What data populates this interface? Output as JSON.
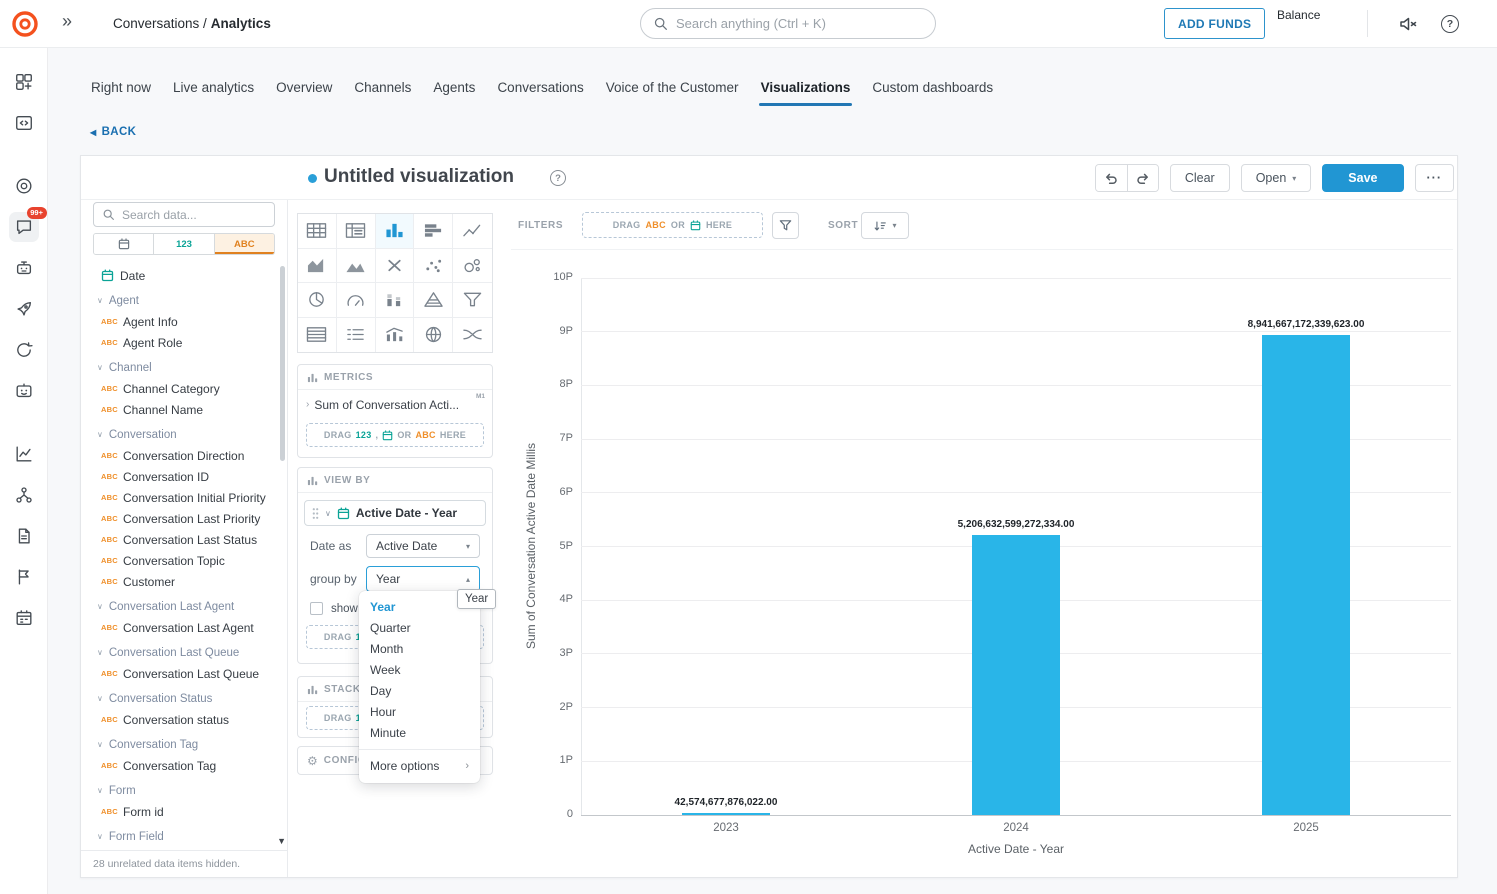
{
  "colors": {
    "accent_blue": "#2196d3",
    "bar_blue": "#29b5e8",
    "orange": "#ef8f2a",
    "teal": "#0aa396",
    "link_blue": "#1a6fb0",
    "badge_red": "#e8432e",
    "brand_orange": "#f4511e"
  },
  "topbar": {
    "breadcrumb_section": "Conversations /",
    "breadcrumb_current": "Analytics",
    "search_placeholder": "Search anything (Ctrl + K)",
    "add_funds_label": "ADD FUNDS",
    "balance_label": "Balance"
  },
  "rail": {
    "groups": [
      [
        "apps-icon",
        "code-box-icon"
      ],
      [
        "target-icon",
        "chat-icon",
        "bot-icon",
        "rocket-icon",
        "sync-icon",
        "assistant-icon"
      ],
      [
        "line-chart-icon",
        "hierarchy-icon",
        "document-icon",
        "flag-icon",
        "calendar-grid-icon"
      ]
    ],
    "active_icon": "chat-icon",
    "chat_badge": "99+"
  },
  "tabs": {
    "items": [
      "Right now",
      "Live analytics",
      "Overview",
      "Channels",
      "Agents",
      "Conversations",
      "Voice of the Customer",
      "Visualizations",
      "Custom dashboards"
    ],
    "active": "Visualizations"
  },
  "back_label": "BACK",
  "header": {
    "title": "Untitled visualization",
    "clear_label": "Clear",
    "open_label": "Open",
    "save_label": "Save",
    "more_label": "···"
  },
  "fields_panel": {
    "search_placeholder": "Search data...",
    "abc_prefix": "ABC",
    "type_toggle": {
      "number_label": "123",
      "text_label": "ABC"
    },
    "items": [
      {
        "kind": "date",
        "label": "Date"
      },
      {
        "kind": "group",
        "label": "Agent"
      },
      {
        "kind": "text",
        "label": "Agent Info"
      },
      {
        "kind": "text",
        "label": "Agent Role"
      },
      {
        "kind": "group",
        "label": "Channel"
      },
      {
        "kind": "text",
        "label": "Channel Category"
      },
      {
        "kind": "text",
        "label": "Channel Name"
      },
      {
        "kind": "group",
        "label": "Conversation"
      },
      {
        "kind": "text",
        "label": "Conversation Direction"
      },
      {
        "kind": "text",
        "label": "Conversation ID"
      },
      {
        "kind": "text",
        "label": "Conversation Initial Priority"
      },
      {
        "kind": "text",
        "label": "Conversation Last Priority"
      },
      {
        "kind": "text",
        "label": "Conversation Last Status"
      },
      {
        "kind": "text",
        "label": "Conversation Topic"
      },
      {
        "kind": "text",
        "label": "Customer"
      },
      {
        "kind": "group",
        "label": "Conversation Last Agent"
      },
      {
        "kind": "text",
        "label": "Conversation Last Agent"
      },
      {
        "kind": "group",
        "label": "Conversation Last Queue"
      },
      {
        "kind": "text",
        "label": "Conversation Last Queue"
      },
      {
        "kind": "group",
        "label": "Conversation Status"
      },
      {
        "kind": "text",
        "label": "Conversation status"
      },
      {
        "kind": "group",
        "label": "Conversation Tag"
      },
      {
        "kind": "text",
        "label": "Conversation Tag"
      },
      {
        "kind": "group",
        "label": "Form"
      },
      {
        "kind": "text",
        "label": "Form id"
      },
      {
        "kind": "group",
        "label": "Form Field"
      }
    ],
    "footer_note": "28 unrelated data items hidden."
  },
  "chart_types": {
    "icons": [
      "table-icon",
      "pivot-table-icon",
      "bar-chart-icon",
      "bar-horizontal-icon",
      "line-chart-icon",
      "area-chart-icon",
      "mountain-chart-icon",
      "axis-chart-icon",
      "scatter-icon",
      "bubble-icon",
      "pie-icon",
      "gauge-icon",
      "stacked-bar-icon",
      "pyramid-icon",
      "funnel-chart-icon",
      "data-table-icon",
      "summary-icon",
      "combo-chart-icon",
      "geo-map-icon",
      "sankey-icon"
    ],
    "selected": "bar-chart-icon"
  },
  "metrics_section": {
    "header": "METRICS",
    "metric_name": "Sum of Conversation Acti...",
    "metric_badge": "M1",
    "dropzone": {
      "drag": "DRAG",
      "num": "123",
      "comma": ",",
      "or": "OR",
      "abc": "ABC",
      "here": "HERE"
    }
  },
  "viewby_section": {
    "header": "VIEW BY",
    "pill_label": "Active Date - Year",
    "date_as_label": "Date as",
    "date_as_value": "Active Date",
    "group_by_label": "group by",
    "group_by_value": "Year",
    "show_label": "show m",
    "dropzone": {
      "drag": "DRAG",
      "num": "123",
      "comma": ",",
      "or": "OR",
      "abc": "ABC",
      "here": "HERE"
    }
  },
  "stackby_section": {
    "header": "STACK BY",
    "dropzone": {
      "drag": "DRAG",
      "num": "123",
      "comma": ",",
      "or": "OR",
      "abc": "ABC",
      "here": "HERE"
    }
  },
  "config_section": {
    "header": "CONFIGURATION"
  },
  "group_by_dropdown": {
    "options": [
      "Year",
      "Quarter",
      "Month",
      "Week",
      "Day",
      "Hour",
      "Minute"
    ],
    "selected": "Year",
    "more_label": "More options",
    "tooltip": "Year"
  },
  "filters_bar": {
    "label": "FILTERS",
    "dropzone": {
      "drag": "DRAG",
      "abc": "ABC",
      "or": "OR",
      "here": "HERE"
    },
    "sort_label": "SORT"
  },
  "chart_data": {
    "type": "bar",
    "categories": [
      "2023",
      "2024",
      "2025"
    ],
    "values": [
      42574677876022,
      5206632599272334,
      8941667172339623
    ],
    "value_labels": [
      "42,574,677,876,022.00",
      "5,206,632,599,272,334.00",
      "8,941,667,172,339,623.00"
    ],
    "xlabel": "Active Date - Year",
    "ylabel": "Sum of Conversation Active Date Millis",
    "ylim": [
      0,
      10000000000000000
    ],
    "ytick_labels": [
      "0",
      "1P",
      "2P",
      "3P",
      "4P",
      "5P",
      "6P",
      "7P",
      "8P",
      "9P",
      "10P"
    ],
    "bar_color": "#29b5e8",
    "grid": true,
    "legend": false
  }
}
